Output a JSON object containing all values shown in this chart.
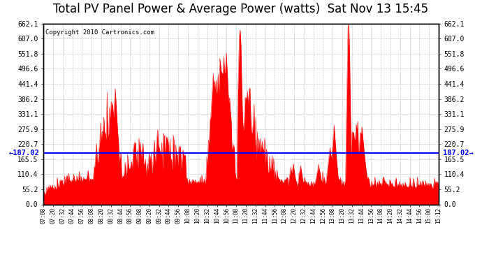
{
  "title": "Total PV Panel Power & Average Power (watts)  Sat Nov 13 15:45",
  "copyright": "Copyright 2010 Cartronics.com",
  "average_value": 187.02,
  "ymin": 0.0,
  "ymax": 662.1,
  "yticks": [
    0.0,
    55.2,
    110.4,
    165.5,
    220.7,
    275.9,
    331.1,
    386.2,
    441.4,
    496.6,
    551.8,
    607.0,
    662.1
  ],
  "ytick_labels": [
    "0.0",
    "55.2",
    "110.4",
    "165.5",
    "220.7",
    "275.9",
    "331.1",
    "386.2",
    "441.4",
    "496.6",
    "551.8",
    "607.0",
    "662.1"
  ],
  "xtick_labels": [
    "07:08",
    "07:20",
    "07:32",
    "07:44",
    "07:56",
    "08:08",
    "08:20",
    "08:32",
    "08:44",
    "08:56",
    "09:08",
    "09:20",
    "09:32",
    "09:44",
    "09:56",
    "10:08",
    "10:20",
    "10:32",
    "10:44",
    "10:56",
    "11:08",
    "11:20",
    "11:32",
    "11:44",
    "11:56",
    "12:08",
    "12:20",
    "12:32",
    "12:44",
    "12:56",
    "13:08",
    "13:20",
    "13:32",
    "13:44",
    "13:56",
    "14:08",
    "14:20",
    "14:32",
    "14:44",
    "14:56",
    "15:00",
    "15:12"
  ],
  "fill_color": "#FF0000",
  "line_color": "#0000FF",
  "bg_color": "#FFFFFF",
  "grid_color": "#BBBBBB",
  "title_fontsize": 12,
  "avg_label_fontsize": 7.5,
  "copyright_fontsize": 6.5
}
